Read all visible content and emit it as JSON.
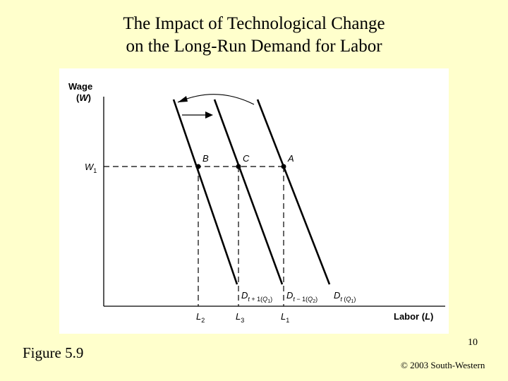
{
  "slide": {
    "title_line1": "The Impact of Technological Change",
    "title_line2": "on the Long-Run Demand for Labor",
    "figure_label": "Figure 5.9",
    "page_number": "10",
    "copyright": "© 2003 South-Western"
  },
  "diagram": {
    "y_axis_label_line1": "Wage",
    "y_axis_label_line2": "(W)",
    "x_axis_label": "Labor (L)",
    "wage_level": "W1",
    "points": [
      "B",
      "C",
      "A"
    ],
    "labor_ticks": [
      "L2",
      "L3",
      "L1"
    ],
    "curve_labels": [
      "Dt + 1(Q1)",
      "Dt − 1(Q2)",
      "Dt (Q1)"
    ]
  }
}
